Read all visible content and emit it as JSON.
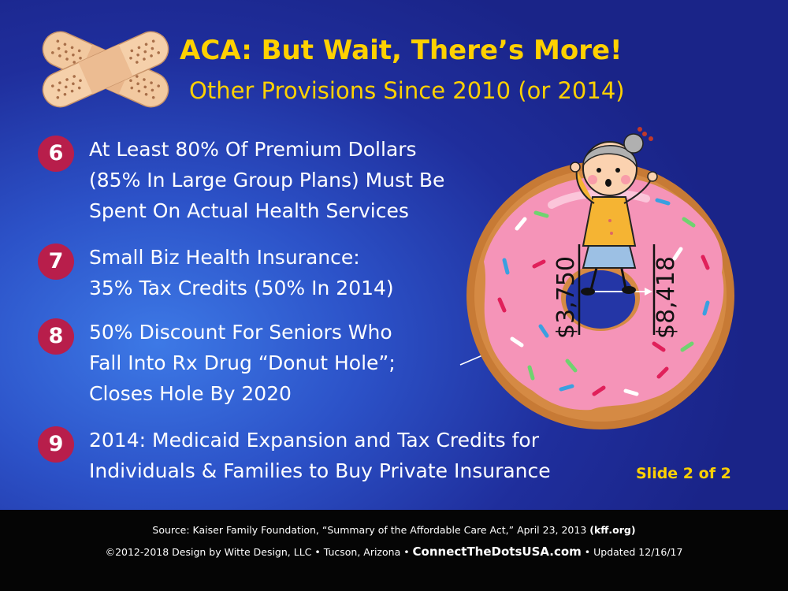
{
  "title": "ACA: But Wait, There’s More!",
  "subtitle": "Other Provisions Since 2010 (or 2014)",
  "provisions": [
    {
      "number": "6",
      "lines": [
        "At Least 80% Of Premium Dollars",
        "(85% In Large Group Plans) Must Be",
        "Spent On Actual Health Services"
      ]
    },
    {
      "number": "7",
      "lines": [
        "Small Biz Health Insurance:",
        "35% Tax Credits (50% In 2014)"
      ]
    },
    {
      "number": "8",
      "lines": [
        "50% Discount For Seniors Who",
        "Fall Into Rx Drug “Donut Hole”;",
        "Closes Hole By 2020"
      ]
    },
    {
      "number": "9",
      "lines": [
        "2014: Medicaid Expansion and Tax Credits for",
        "Individuals & Families to Buy Private Insurance"
      ]
    }
  ],
  "slide_number": "Slide 2 of 2",
  "donut": {
    "low": "$3,750",
    "high": "$8,418"
  },
  "footer": {
    "source_prefix": "Source: Kaiser Family Foundation, “Summary of the Affordable Care Act,” April 23, 2013 ",
    "source_site": "(kff.org)",
    "credit": "©2012-2018 Design by Witte Design, LLC • Tucson, Arizona • ",
    "website": "ConnectTheDotsUSA.com",
    "updated": " • Updated 12/16/17"
  },
  "colors": {
    "title_yellow": "#ffd100",
    "number_badge": "#b81e4b",
    "background_blue": "#2c52c8",
    "footer_black": "#050505",
    "donut_frosting": "#f594b8",
    "donut_dough": "#c77a35"
  }
}
